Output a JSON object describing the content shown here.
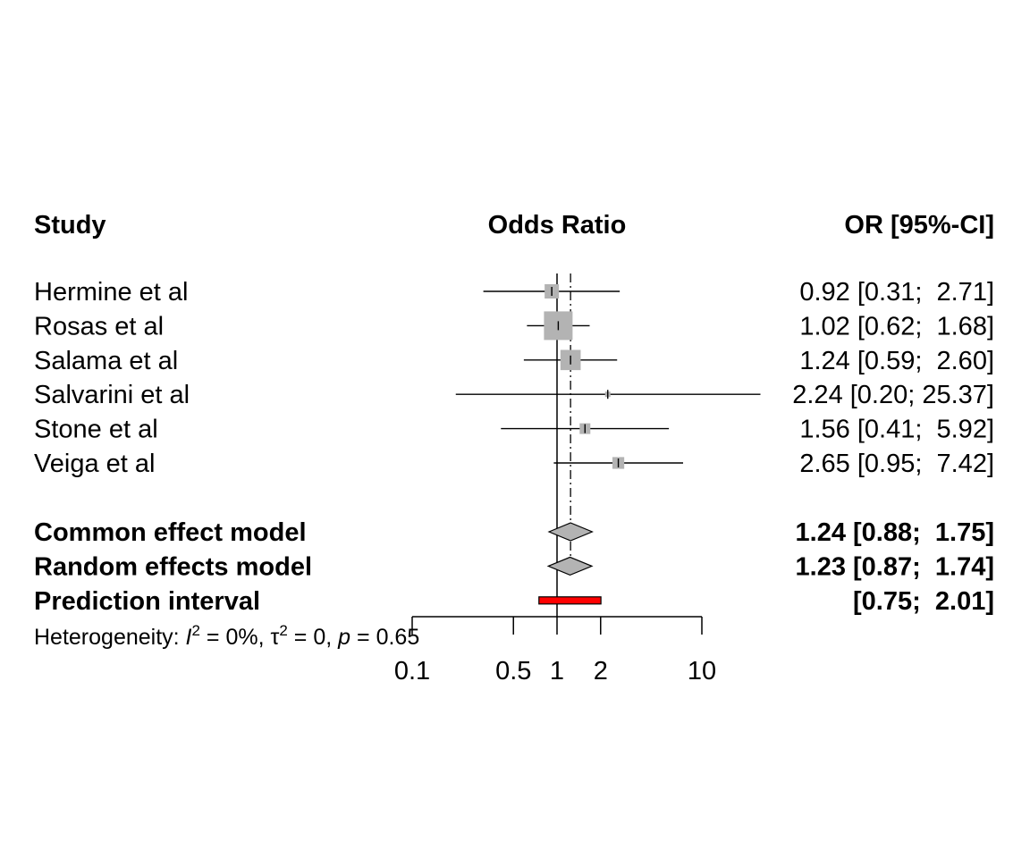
{
  "chart_data": {
    "type": "forest",
    "columns": {
      "study": "Study",
      "plot": "Odds Ratio",
      "estimate": "OR [95%-CI]"
    },
    "x_scale": "log",
    "xlim": [
      0.1,
      10
    ],
    "x_ticks": [
      {
        "value": 0.1,
        "label": "0.1"
      },
      {
        "value": 0.5,
        "label": "0.5"
      },
      {
        "value": 1,
        "label": "1"
      },
      {
        "value": 2,
        "label": "2"
      },
      {
        "value": 10,
        "label": "10"
      }
    ],
    "reference_line": 1,
    "common_effect_line": 1.24,
    "studies": [
      {
        "name": "Hermine et al",
        "or": 0.92,
        "lower": 0.31,
        "upper": 2.71,
        "ci_text": "0.92 [0.31;  2.71]",
        "weight": 0.25
      },
      {
        "name": "Rosas et al",
        "or": 1.02,
        "lower": 0.62,
        "upper": 1.68,
        "ci_text": "1.02 [0.62;  1.68]",
        "weight": 1.0
      },
      {
        "name": "Salama et al",
        "or": 1.24,
        "lower": 0.59,
        "upper": 2.6,
        "ci_text": "1.24 [0.59;  2.60]",
        "weight": 0.5
      },
      {
        "name": "Salvarini et al",
        "or": 2.24,
        "lower": 0.2,
        "upper": 25.37,
        "ci_text": "2.24 [0.20; 25.37]",
        "weight": 0.03
      },
      {
        "name": "Stone et al",
        "or": 1.56,
        "lower": 0.41,
        "upper": 5.92,
        "ci_text": "1.56 [0.41;  5.92]",
        "weight": 0.14
      },
      {
        "name": "Veiga et al",
        "or": 2.65,
        "lower": 0.95,
        "upper": 7.42,
        "ci_text": "2.65 [0.95;  7.42]",
        "weight": 0.17
      }
    ],
    "summaries": [
      {
        "name": "Common effect model",
        "or": 1.24,
        "lower": 0.88,
        "upper": 1.75,
        "ci_text": "1.24 [0.88;  1.75]"
      },
      {
        "name": "Random effects model",
        "or": 1.23,
        "lower": 0.87,
        "upper": 1.74,
        "ci_text": "1.23 [0.87;  1.74]"
      }
    ],
    "prediction_interval": {
      "name": "Prediction interval",
      "lower": 0.75,
      "upper": 2.01,
      "ci_text": "[0.75;  2.01]"
    },
    "heterogeneity": {
      "prefix": "Heterogeneity: ",
      "I2": "0%",
      "tau2": "0",
      "p": "0.65"
    },
    "colors": {
      "box": "#b3b3b3",
      "diamond": "#b3b3b3",
      "prediction": "#ff0000",
      "line": "#000000"
    }
  }
}
